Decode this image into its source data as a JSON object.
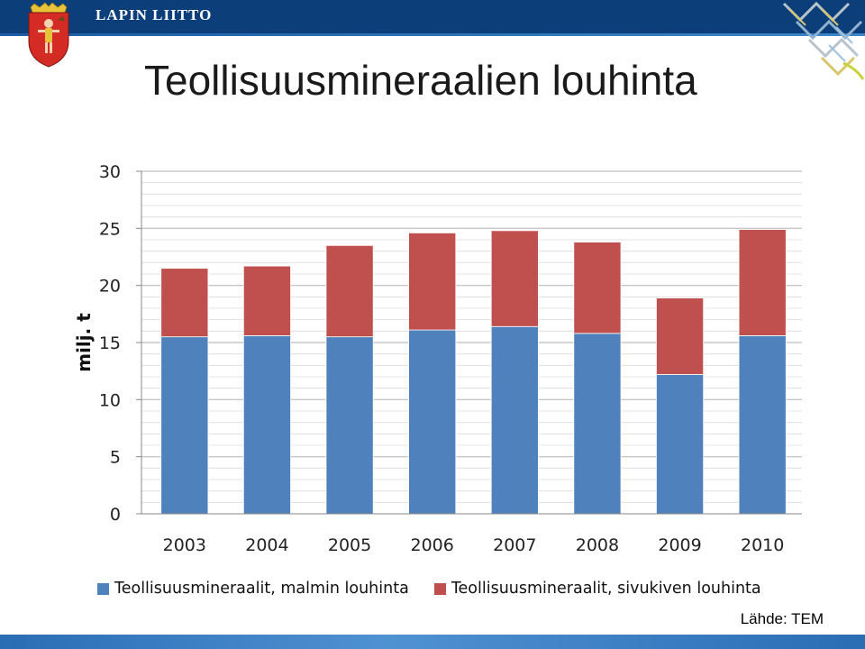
{
  "header": {
    "brand": "LAPIN LIITTO"
  },
  "title": "Teollisuusmineraalien louhinta",
  "source": "Lähde: TEM",
  "colors": {
    "series1": "#4f81bd",
    "series2": "#c0504d",
    "header": "#0c3f7a"
  },
  "icons": {
    "logo": "coat-of-arms-icon",
    "corner": "decorative-pattern-icon"
  },
  "chart_data": {
    "type": "bar",
    "stacked": true,
    "categories": [
      "2003",
      "2004",
      "2005",
      "2006",
      "2007",
      "2008",
      "2009",
      "2010"
    ],
    "series": [
      {
        "name": "Teollisuusmineraalit, malmin louhinta",
        "values": [
          15.5,
          15.6,
          15.5,
          16.1,
          16.4,
          15.8,
          12.2,
          15.6
        ]
      },
      {
        "name": "Teollisuusmineraalit, sivukiven louhinta",
        "values": [
          6.0,
          6.1,
          8.0,
          8.5,
          8.4,
          8.0,
          6.7,
          9.3
        ]
      }
    ],
    "ylabel": "milj. t",
    "ylim": [
      0,
      30
    ],
    "yticks": [
      0,
      5,
      10,
      15,
      20,
      25,
      30
    ],
    "grid": true,
    "legend": "bottom"
  }
}
